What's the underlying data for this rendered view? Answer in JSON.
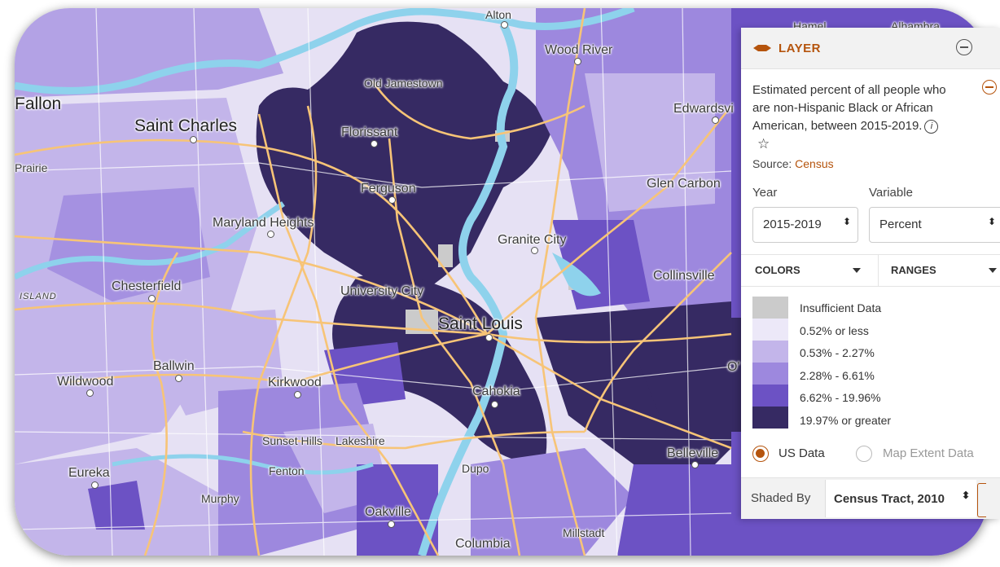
{
  "map": {
    "colors": {
      "insufficient": "#cbcbcb",
      "bin1": "#ece8f8",
      "bin2": "#c3b5ea",
      "bin3": "#9d88de",
      "bin4": "#6c52c4",
      "bin5": "#362a63",
      "road": "#f7c477",
      "minor_road": "#ffffff",
      "river": "#8ed2ec"
    },
    "places": [
      {
        "name": "Alton",
        "size": "sm"
      },
      {
        "name": "Hamel",
        "size": "sm"
      },
      {
        "name": "Alhambra",
        "size": "sm"
      },
      {
        "name": "Wood River",
        "size": "med"
      },
      {
        "name": "Old Jamestown",
        "size": "sm"
      },
      {
        "name": "Fallon",
        "size": "big"
      },
      {
        "name": "Saint Charles",
        "size": "big"
      },
      {
        "name": "Florissant",
        "size": "med"
      },
      {
        "name": "Edwardsvi",
        "size": "med"
      },
      {
        "name": "Prairie",
        "size": "sm"
      },
      {
        "name": "Ferguson",
        "size": "med"
      },
      {
        "name": "Glen Carbon",
        "size": "med"
      },
      {
        "name": "Maryland Heights",
        "size": "med"
      },
      {
        "name": "Granite City",
        "size": "med"
      },
      {
        "name": "Collinsville",
        "size": "med"
      },
      {
        "name": "Chesterfield",
        "size": "med"
      },
      {
        "name": "University City",
        "size": "med"
      },
      {
        "name": "ISLAND",
        "size": "it"
      },
      {
        "name": "Saint Louis",
        "size": "big"
      },
      {
        "name": "Ballwin",
        "size": "med"
      },
      {
        "name": "Wildwood",
        "size": "med"
      },
      {
        "name": "Kirkwood",
        "size": "med"
      },
      {
        "name": "Cahokia",
        "size": "med"
      },
      {
        "name": "O'",
        "size": "med"
      },
      {
        "name": "Sunset Hills",
        "size": "sm"
      },
      {
        "name": "Lakeshire",
        "size": "sm"
      },
      {
        "name": "Belleville",
        "size": "med"
      },
      {
        "name": "Eureka",
        "size": "med"
      },
      {
        "name": "Fenton",
        "size": "sm"
      },
      {
        "name": "Dupo",
        "size": "sm"
      },
      {
        "name": "Murphy",
        "size": "sm"
      },
      {
        "name": "Oakville",
        "size": "med"
      },
      {
        "name": "Millstadt",
        "size": "sm"
      },
      {
        "name": "Columbia",
        "size": "med"
      }
    ]
  },
  "panel": {
    "title": "LAYER",
    "description": "Estimated percent of all people who are non-Hispanic Black or African American, between 2015-2019.",
    "info_glyph": "i",
    "star_glyph": "☆",
    "source_label": "Source: ",
    "source_link": "Census",
    "year_label": "Year",
    "variable_label": "Variable",
    "year_value": "2015-2019",
    "variable_value": "Percent",
    "updown_glyph": "⬍",
    "tab_colors": "COLORS",
    "tab_ranges": "RANGES",
    "legend": [
      {
        "label": "Insufficient Data",
        "color": "#cbcbcb"
      },
      {
        "label": "0.52% or less",
        "color": "#ece8f8"
      },
      {
        "label": "0.53% - 2.27%",
        "color": "#c3b5ea"
      },
      {
        "label": "2.28% - 6.61%",
        "color": "#9d88de"
      },
      {
        "label": "6.62% - 19.96%",
        "color": "#6c52c4"
      },
      {
        "label": "19.97% or greater",
        "color": "#362a63"
      }
    ],
    "radio_us": "US Data",
    "radio_extent": "Map Extent Data",
    "shaded_by_label": "Shaded By",
    "shaded_by_value": "Census Tract, 2010",
    "accent": "#b5540d"
  }
}
